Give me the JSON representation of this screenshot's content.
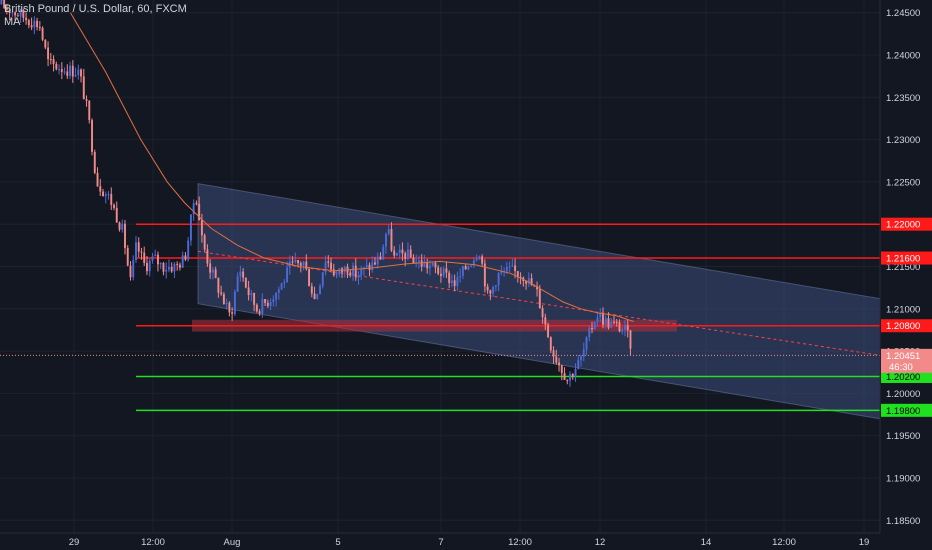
{
  "legend": {
    "symbol_line": "British Pound / U.S. Dollar, 60, FXCM",
    "indicator": "MA"
  },
  "colors": {
    "background": "#131722",
    "up": "#4a6bd8",
    "down": "#f28a8a",
    "ma": "#e07040",
    "resistance": "#ff1a1a",
    "support": "#20e020",
    "channel_fill": "#3c4c7a"
  },
  "chart_data": {
    "type": "candlestick",
    "symbol": "British Pound / U.S. Dollar",
    "interval": "60",
    "source": "FXCM",
    "ylim": [
      1.1835,
      1.2465
    ],
    "price_ticks": [
      1.245,
      1.24,
      1.235,
      1.23,
      1.225,
      1.22,
      1.215,
      1.21,
      1.205,
      1.2,
      1.195,
      1.19,
      1.185
    ],
    "price_tick_labels": [
      "1.24500",
      "1.24000",
      "1.23500",
      "1.23000",
      "1.22500",
      "1.22000",
      "1.21500",
      "1.21000",
      "1.20500",
      "1.20000",
      "1.19500",
      "1.19000",
      "1.18500"
    ],
    "time_ticks": [
      "29",
      "12:00",
      "Aug",
      "5",
      "7",
      "12:00",
      "12",
      "14",
      "12:00",
      "19"
    ],
    "horizontal_levels": [
      {
        "price": 1.22,
        "label": "1.22000",
        "color": "#ff1a1a"
      },
      {
        "price": 1.216,
        "label": "1.21600",
        "color": "#ff1a1a"
      },
      {
        "price": 1.208,
        "label": "1.20800",
        "color": "#ff1a1a"
      },
      {
        "price": 1.202,
        "label": "1.20200",
        "color": "#20e020"
      },
      {
        "price": 1.198,
        "label": "1.19800",
        "color": "#20e020"
      }
    ],
    "current_price": {
      "price": 1.2045,
      "label": "1.20451",
      "countdown": "46:30",
      "color": "#f28a8a"
    },
    "zone": {
      "price_low": 1.2073,
      "price_high": 1.2087
    },
    "channel": {
      "upper": [
        [
          0.225,
          1.2248
        ],
        [
          1.0,
          1.2112
        ]
      ],
      "lower": [
        [
          0.225,
          1.2106
        ],
        [
          1.0,
          1.197
        ]
      ]
    },
    "ma_trend_line": [
      [
        0.225,
        1.2168
      ],
      [
        1.0,
        1.2045
      ]
    ],
    "anchors": [
      [
        0.0,
        1.246
      ],
      [
        0.045,
        1.2435
      ],
      [
        0.055,
        1.239
      ],
      [
        0.075,
        1.2383
      ],
      [
        0.09,
        1.238
      ],
      [
        0.1,
        1.233
      ],
      [
        0.11,
        1.225
      ],
      [
        0.125,
        1.223
      ],
      [
        0.14,
        1.219
      ],
      [
        0.148,
        1.213
      ],
      [
        0.155,
        1.2175
      ],
      [
        0.165,
        1.215
      ],
      [
        0.175,
        1.216
      ],
      [
        0.185,
        1.215
      ],
      [
        0.2,
        1.215
      ],
      [
        0.21,
        1.216
      ],
      [
        0.215,
        1.219
      ],
      [
        0.222,
        1.224
      ],
      [
        0.23,
        1.218
      ],
      [
        0.238,
        1.215
      ],
      [
        0.25,
        1.212
      ],
      [
        0.262,
        1.209
      ],
      [
        0.272,
        1.215
      ],
      [
        0.282,
        1.212
      ],
      [
        0.292,
        1.21
      ],
      [
        0.305,
        1.211
      ],
      [
        0.318,
        1.2125
      ],
      [
        0.33,
        1.215
      ],
      [
        0.345,
        1.2155
      ],
      [
        0.358,
        1.211
      ],
      [
        0.37,
        1.216
      ],
      [
        0.382,
        1.214
      ],
      [
        0.395,
        1.215
      ],
      [
        0.405,
        1.214
      ],
      [
        0.42,
        1.215
      ],
      [
        0.432,
        1.216
      ],
      [
        0.44,
        1.2195
      ],
      [
        0.448,
        1.216
      ],
      [
        0.46,
        1.2165
      ],
      [
        0.475,
        1.2155
      ],
      [
        0.49,
        1.215
      ],
      [
        0.505,
        1.214
      ],
      [
        0.518,
        1.213
      ],
      [
        0.53,
        1.215
      ],
      [
        0.545,
        1.217
      ],
      [
        0.555,
        1.211
      ],
      [
        0.565,
        1.214
      ],
      [
        0.58,
        1.2145
      ],
      [
        0.595,
        1.214
      ],
      [
        0.61,
        1.212
      ],
      [
        0.62,
        1.208
      ],
      [
        0.628,
        1.205
      ],
      [
        0.638,
        1.203
      ],
      [
        0.645,
        1.2017
      ],
      [
        0.65,
        1.2025
      ],
      [
        0.66,
        1.204
      ],
      [
        0.668,
        1.2065
      ],
      [
        0.678,
        1.2095
      ],
      [
        0.688,
        1.2085
      ],
      [
        0.7,
        1.208
      ],
      [
        0.71,
        1.2075
      ],
      [
        0.718,
        1.2055
      ]
    ],
    "ma_anchors": [
      [
        0.08,
        1.245
      ],
      [
        0.12,
        1.238
      ],
      [
        0.16,
        1.23
      ],
      [
        0.19,
        1.225
      ],
      [
        0.21,
        1.2225
      ],
      [
        0.24,
        1.2195
      ],
      [
        0.27,
        1.2175
      ],
      [
        0.3,
        1.216
      ],
      [
        0.34,
        1.215
      ],
      [
        0.38,
        1.2145
      ],
      [
        0.42,
        1.2148
      ],
      [
        0.46,
        1.2153
      ],
      [
        0.5,
        1.2156
      ],
      [
        0.54,
        1.2152
      ],
      [
        0.58,
        1.2142
      ],
      [
        0.6,
        1.2132
      ],
      [
        0.62,
        1.212
      ],
      [
        0.64,
        1.2108
      ],
      [
        0.66,
        1.21
      ],
      [
        0.68,
        1.2095
      ],
      [
        0.7,
        1.2092
      ],
      [
        0.72,
        1.2085
      ]
    ],
    "candle_count": 230
  }
}
